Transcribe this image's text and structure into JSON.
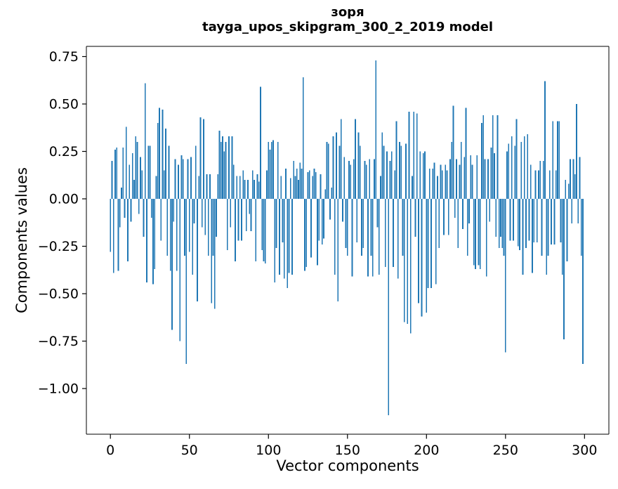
{
  "figure": {
    "title": "зоря",
    "subtitle": "tayga_upos_skipgram_300_2_2019 model"
  },
  "chart_data": {
    "type": "bar",
    "title": "зоря",
    "subtitle": "tayga_upos_skipgram_300_2_2019 model",
    "xlabel": "Vector components",
    "ylabel": "Components values",
    "bar_color": "#1f77b4",
    "grid": false,
    "legend_position": "none",
    "xlim": [
      -15.2,
      315.4
    ],
    "ylim": [
      -1.2407,
      0.8037
    ],
    "xticks": [
      {
        "label": "0",
        "value": 0
      },
      {
        "label": "50",
        "value": 50
      },
      {
        "label": "100",
        "value": 100
      },
      {
        "label": "150",
        "value": 150
      },
      {
        "label": "200",
        "value": 200
      },
      {
        "label": "250",
        "value": 250
      },
      {
        "label": "300",
        "value": 300
      }
    ],
    "yticks": [
      {
        "label": "0.75",
        "value": 0.75
      },
      {
        "label": "0.50",
        "value": 0.5
      },
      {
        "label": "0.25",
        "value": 0.25
      },
      {
        "label": "0.00",
        "value": 0.0
      },
      {
        "label": "−0.25",
        "value": -0.25
      },
      {
        "label": "−0.50",
        "value": -0.5
      },
      {
        "label": "−0.75",
        "value": -0.75
      },
      {
        "label": "−1.00",
        "value": -1.0
      }
    ],
    "x_start": 0,
    "values": [
      -0.28,
      0.2,
      -0.39,
      0.26,
      0.27,
      -0.38,
      -0.15,
      0.06,
      0.27,
      -0.1,
      0.38,
      -0.33,
      0.18,
      -0.12,
      0.24,
      0.1,
      0.33,
      0.3,
      -0.08,
      0.22,
      0.15,
      -0.2,
      0.61,
      -0.44,
      0.28,
      0.28,
      -0.1,
      -0.45,
      -0.37,
      0.12,
      0.4,
      0.48,
      -0.22,
      0.47,
      0.15,
      0.37,
      -0.3,
      0.28,
      -0.38,
      -0.69,
      -0.12,
      0.21,
      -0.38,
      0.18,
      -0.75,
      0.23,
      0.21,
      -0.3,
      -0.87,
      0.21,
      -0.28,
      0.22,
      -0.4,
      -0.13,
      0.28,
      -0.54,
      0.12,
      0.43,
      -0.15,
      0.42,
      -0.19,
      0.13,
      -0.3,
      0.13,
      -0.55,
      -0.3,
      -0.58,
      -0.2,
      0.13,
      0.36,
      0.3,
      0.33,
      0.25,
      0.3,
      -0.27,
      0.33,
      -0.15,
      0.33,
      0.18,
      -0.33,
      0.12,
      -0.22,
      0.12,
      -0.22,
      0.15,
      0.1,
      -0.17,
      0.1,
      -0.08,
      -0.17,
      0.15,
      0.1,
      -0.33,
      0.13,
      0.09,
      0.59,
      -0.27,
      -0.33,
      -0.34,
      0.15,
      0.3,
      0.26,
      0.3,
      0.31,
      -0.44,
      -0.26,
      0.3,
      -0.4,
      0.12,
      -0.23,
      -0.42,
      0.16,
      -0.47,
      -0.39,
      0.11,
      -0.4,
      0.2,
      0.12,
      0.16,
      0.1,
      0.19,
      0.16,
      0.64,
      -0.38,
      -0.36,
      0.14,
      0.15,
      -0.31,
      0.12,
      0.16,
      0.14,
      -0.35,
      -0.22,
      0.13,
      -0.24,
      -0.21,
      0.05,
      0.3,
      0.29,
      -0.11,
      0.06,
      0.33,
      -0.4,
      0.35,
      -0.54,
      0.28,
      0.42,
      -0.12,
      0.22,
      -0.26,
      -0.3,
      0.2,
      0.18,
      -0.41,
      0.21,
      0.42,
      -0.23,
      0.35,
      0.28,
      -0.3,
      -0.26,
      0.2,
      0.18,
      -0.41,
      0.21,
      -0.3,
      -0.41,
      0.21,
      0.73,
      -0.15,
      -0.4,
      0.12,
      0.35,
      0.28,
      -0.36,
      0.25,
      -1.14,
      0.2,
      0.25,
      -0.36,
      0.15,
      0.41,
      -0.42,
      0.3,
      0.28,
      -0.3,
      -0.65,
      0.29,
      -0.66,
      0.46,
      -0.71,
      0.12,
      0.46,
      -0.2,
      0.45,
      -0.55,
      0.25,
      -0.62,
      0.24,
      0.25,
      -0.6,
      -0.47,
      0.16,
      -0.47,
      0.16,
      0.19,
      -0.45,
      0.12,
      -0.26,
      0.18,
      0.15,
      -0.19,
      0.18,
      0.15,
      -0.19,
      0.21,
      0.3,
      0.49,
      -0.1,
      0.21,
      -0.26,
      0.18,
      0.3,
      -0.16,
      0.22,
      0.48,
      -0.3,
      -0.13,
      0.23,
      0.18,
      -0.35,
      -0.37,
      0.23,
      -0.35,
      -0.37,
      0.4,
      0.44,
      0.21,
      -0.41,
      0.21,
      -0.12,
      0.27,
      0.44,
      0.24,
      -0.2,
      0.44,
      -0.26,
      -0.2,
      -0.26,
      -0.3,
      -0.81,
      0.25,
      0.29,
      -0.22,
      0.33,
      -0.22,
      0.28,
      0.42,
      -0.25,
      -0.27,
      0.3,
      -0.4,
      0.33,
      -0.26,
      0.34,
      -0.22,
      0.18,
      -0.39,
      -0.23,
      0.15,
      -0.23,
      0.15,
      0.2,
      -0.3,
      0.2,
      0.62,
      -0.4,
      -0.3,
      0.15,
      -0.24,
      0.41,
      -0.24,
      0.15,
      0.41,
      0.41,
      -0.23,
      -0.4,
      -0.74,
      0.1,
      -0.33,
      0.08,
      0.21,
      -0.13,
      0.21,
      0.13,
      0.5,
      -0.13,
      0.22,
      -0.3,
      -0.87
    ]
  }
}
